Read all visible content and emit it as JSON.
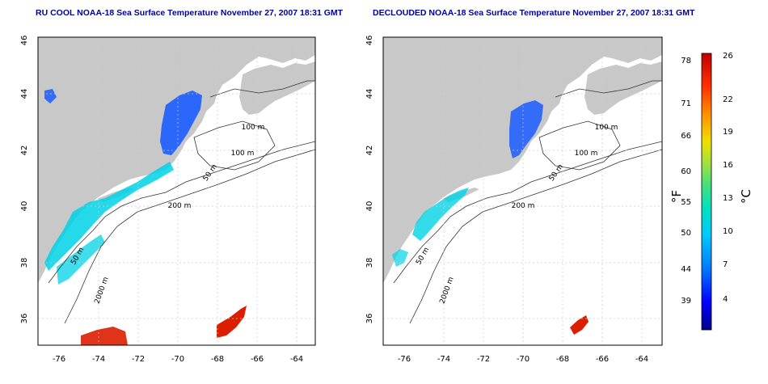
{
  "panels": [
    {
      "title": "RU COOL NOAA-18 Sea Surface Temperature November 27, 2007 18:31 GMT",
      "contour_labels": [
        "100 m",
        "100 m",
        "50 m",
        "200 m",
        "50 m",
        "2000 m"
      ]
    },
    {
      "title": "DECLOUDED NOAA-18 Sea Surface Temperature November 27, 2007 18:31 GMT",
      "contour_labels": [
        "100 m",
        "100 m",
        "50 m",
        "200 m",
        "50 m",
        "2000 m"
      ]
    }
  ],
  "axes": {
    "lon_ticks": [
      "-76",
      "-74",
      "-72",
      "-70",
      "-68",
      "-66",
      "-64"
    ],
    "lat_ticks": [
      "46",
      "44",
      "42",
      "40",
      "38",
      "36"
    ]
  },
  "colorbar": {
    "fahrenheit_unit": "°F",
    "celsius_unit": "°C",
    "fahrenheit_ticks": [
      "78",
      "71",
      "66",
      "60",
      "55",
      "50",
      "44",
      "39"
    ],
    "celsius_ticks": [
      "26",
      "22",
      "19",
      "16",
      "13",
      "10",
      "7",
      "4"
    ],
    "colors": [
      "#00008b",
      "#0000ff",
      "#0078ff",
      "#00c8ff",
      "#00e0c0",
      "#40e080",
      "#a0e040",
      "#f0e000",
      "#ff9000",
      "#ff3000",
      "#c00000"
    ]
  },
  "colors": {
    "land": "#c8c8c8",
    "cold_water": "#1a5cff",
    "mid_water": "#00d2e6",
    "warm_water": "#dc1e00"
  }
}
